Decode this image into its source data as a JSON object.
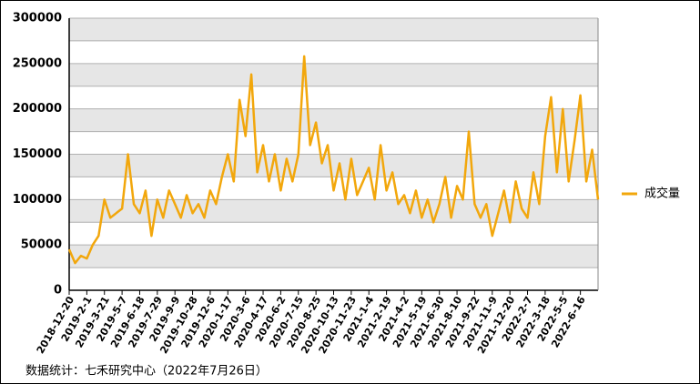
{
  "chart_data": {
    "type": "line",
    "source": "数据统计：七禾研究中心（2022年7月26日）",
    "categories": [
      "2018-12-20",
      null,
      null,
      "2019-2-1",
      null,
      null,
      "2019-3-21",
      null,
      null,
      "2019-5-7",
      null,
      null,
      "2019-6-18",
      null,
      null,
      "2019-7-29",
      null,
      null,
      "2019-9-9",
      null,
      null,
      "2019-10-28",
      null,
      null,
      "2019-12-6",
      null,
      null,
      "2020-1-17",
      null,
      null,
      "2020-3-6",
      null,
      null,
      "2020-4-17",
      null,
      null,
      "2020-6-2",
      null,
      null,
      "2020-7-15",
      null,
      null,
      "2020-8-25",
      null,
      null,
      "2020-10-13",
      null,
      null,
      "2020-11-23",
      null,
      null,
      "2021-1-4",
      null,
      null,
      "2021-2-19",
      null,
      null,
      "2021-4-2",
      null,
      null,
      "2021-5-19",
      null,
      null,
      "2021-6-30",
      null,
      null,
      "2021-8-10",
      null,
      null,
      "2021-9-22",
      null,
      null,
      "2021-11-9",
      null,
      null,
      "2021-12-20",
      null,
      null,
      "2022-2-7",
      null,
      null,
      "2022-3-18",
      null,
      null,
      "2022-5-5",
      null,
      null,
      "2022-6-16",
      null,
      null,
      null
    ],
    "series": [
      {
        "name": "成交量",
        "color": "#f2a70c",
        "values": [
          45000,
          30000,
          38000,
          35000,
          50000,
          60000,
          100000,
          80000,
          85000,
          90000,
          150000,
          95000,
          85000,
          110000,
          60000,
          100000,
          80000,
          110000,
          95000,
          80000,
          105000,
          85000,
          95000,
          80000,
          110000,
          95000,
          125000,
          150000,
          120000,
          210000,
          170000,
          238000,
          130000,
          160000,
          120000,
          150000,
          110000,
          145000,
          120000,
          150000,
          258000,
          160000,
          185000,
          140000,
          160000,
          110000,
          140000,
          100000,
          145000,
          105000,
          120000,
          135000,
          100000,
          160000,
          110000,
          130000,
          95000,
          105000,
          85000,
          110000,
          80000,
          100000,
          75000,
          95000,
          125000,
          80000,
          115000,
          100000,
          175000,
          95000,
          80000,
          95000,
          60000,
          85000,
          110000,
          75000,
          120000,
          90000,
          80000,
          130000,
          95000,
          170000,
          213000,
          130000,
          200000,
          120000,
          165000,
          215000,
          120000,
          155000,
          100000
        ]
      }
    ],
    "ylim": [
      0,
      300000
    ],
    "yticks": [
      0,
      50000,
      100000,
      150000,
      200000,
      250000,
      300000
    ],
    "grid": true,
    "legend": "right"
  }
}
